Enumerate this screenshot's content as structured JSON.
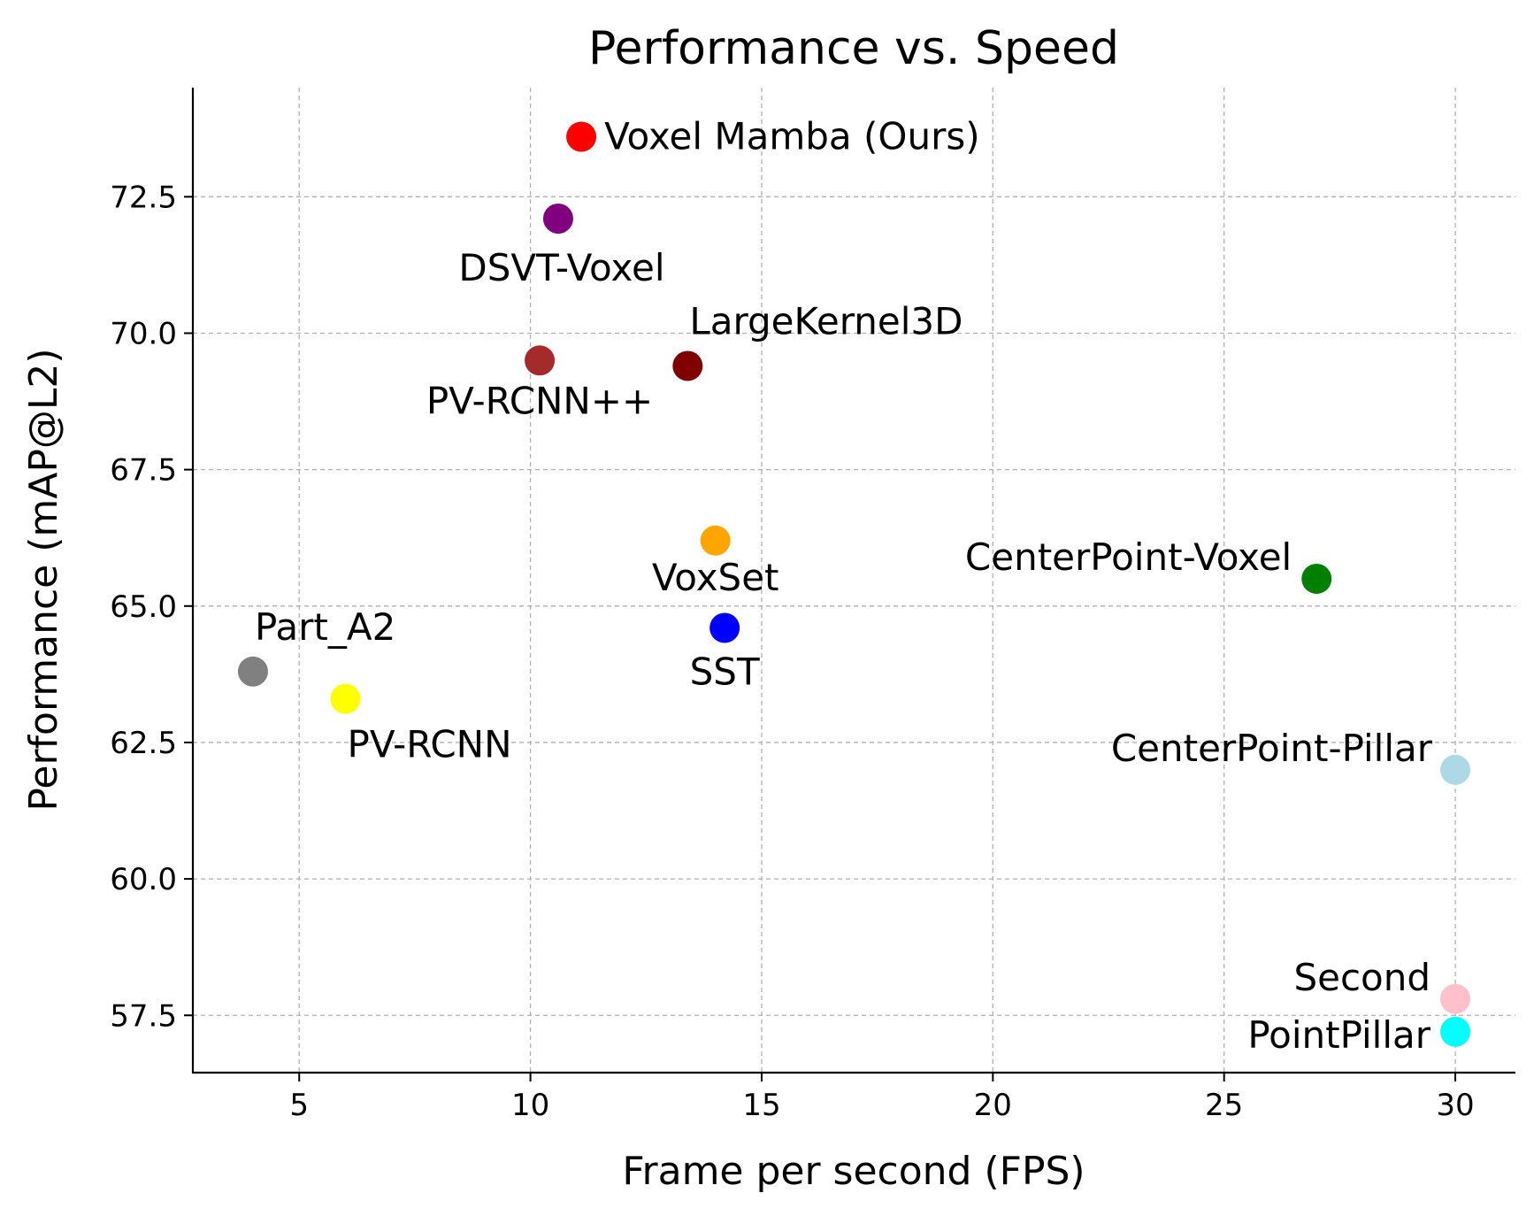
{
  "chart_data": {
    "type": "scatter",
    "title": "Performance vs. Speed",
    "xlabel": "Frame per second (FPS)",
    "ylabel": "Performance (mAP@L2)",
    "xlim": [
      2.7,
      31.3
    ],
    "ylim": [
      56.45,
      74.5
    ],
    "xticks": [
      5,
      10,
      15,
      20,
      25,
      30
    ],
    "yticks": [
      57.5,
      60.0,
      62.5,
      65.0,
      67.5,
      70.0,
      72.5
    ],
    "xtick_labels": [
      "5",
      "10",
      "15",
      "20",
      "25",
      "30"
    ],
    "ytick_labels": [
      "57.5",
      "60.0",
      "62.5",
      "65.0",
      "67.5",
      "70.0",
      "72.5"
    ],
    "grid": true,
    "points": [
      {
        "name": "Voxel Mamba (Ours)",
        "x": 11.1,
        "y": 73.6,
        "color": "#ff0000",
        "label_pos": "right"
      },
      {
        "name": "DSVT-Voxel",
        "x": 10.6,
        "y": 72.1,
        "color": "#800080",
        "label_pos": "below"
      },
      {
        "name": "PV-RCNN++",
        "x": 10.2,
        "y": 69.5,
        "color": "#a52a2a",
        "label_pos": "below"
      },
      {
        "name": "LargeKernel3D",
        "x": 13.4,
        "y": 69.4,
        "color": "#800000",
        "label_pos": "above-right"
      },
      {
        "name": "VoxSet",
        "x": 14.0,
        "y": 66.2,
        "color": "#ffa500",
        "label_pos": "below"
      },
      {
        "name": "SST",
        "x": 14.2,
        "y": 64.6,
        "color": "#0000ff",
        "label_pos": "below"
      },
      {
        "name": "CenterPoint-Voxel",
        "x": 27.0,
        "y": 65.5,
        "color": "#008000",
        "label_pos": "left"
      },
      {
        "name": "Part_A2",
        "x": 4.0,
        "y": 63.8,
        "color": "#808080",
        "label_pos": "above-right"
      },
      {
        "name": "PV-RCNN",
        "x": 6.0,
        "y": 63.3,
        "color": "#ffff00",
        "label_pos": "below-right"
      },
      {
        "name": "CenterPoint-Pillar",
        "x": 30.0,
        "y": 62.0,
        "color": "#add8e6",
        "label_pos": "left"
      },
      {
        "name": "Second",
        "x": 30.0,
        "y": 57.8,
        "color": "#ffc0cb",
        "label_pos": "left"
      },
      {
        "name": "PointPillar",
        "x": 30.0,
        "y": 57.2,
        "color": "#00ffff",
        "label_pos": "left"
      }
    ]
  }
}
